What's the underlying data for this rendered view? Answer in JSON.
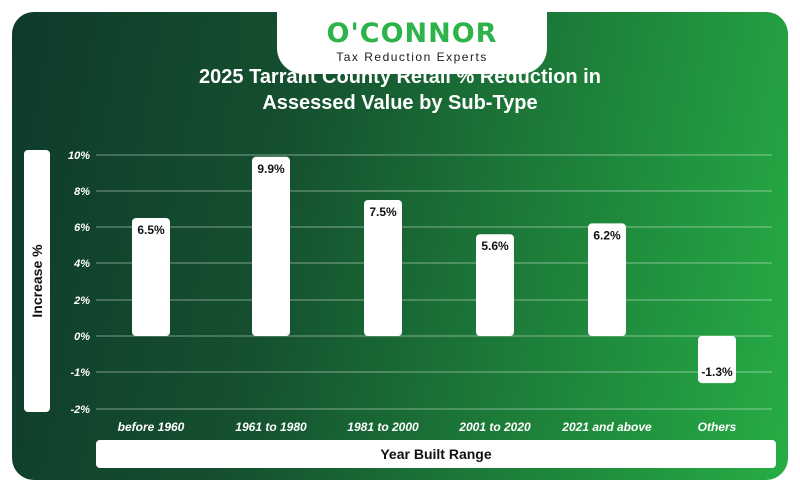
{
  "brand": {
    "name": "O'CONNOR",
    "tagline": "Tax Reduction Experts"
  },
  "colors": {
    "background_start": "#0e3a2b",
    "background_end": "#27ad45",
    "bar": "#ffffff",
    "brand": "#2db34a"
  },
  "chart_data": {
    "type": "bar",
    "title": "2025 Tarrant County Retail % Reduction in Assessed Value by Sub-Type",
    "title_lines": [
      "2025 Tarrant County Retail % Reduction in",
      "Assessed Value by Sub-Type"
    ],
    "xlabel": "Year Built Range",
    "ylabel": "Increase %",
    "categories": [
      "before 1960",
      "1961 to 1980",
      "1981 to 2000",
      "2001 to 2020",
      "2021 and above",
      "Others"
    ],
    "values": [
      6.5,
      9.9,
      7.5,
      5.6,
      6.2,
      -1.3
    ],
    "data_labels": [
      "6.5%",
      "9.9%",
      "7.5%",
      "5.6%",
      "6.2%",
      "-1.3%"
    ],
    "ylim": [
      -2,
      10
    ],
    "yticks": [
      10,
      8,
      6,
      4,
      2,
      0,
      -1,
      -2
    ],
    "ytick_labels": [
      "10%",
      "8%",
      "6%",
      "4%",
      "2%",
      "0%",
      "-1%",
      "-2%"
    ],
    "grid": true,
    "legend": "none"
  }
}
